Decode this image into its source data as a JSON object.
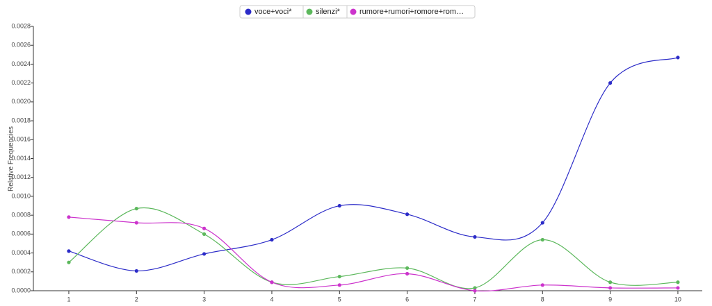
{
  "chart_data": {
    "type": "line",
    "y_label": "Relative Frequencies",
    "categories": [
      "1",
      "2",
      "3",
      "4",
      "5",
      "6",
      "7",
      "8",
      "9",
      "10"
    ],
    "series": [
      {
        "name": "voce+voci*",
        "color": "#2b2bc8",
        "values": [
          0.00042,
          0.00021,
          0.00039,
          0.00054,
          0.0009,
          0.00081,
          0.00057,
          0.00072,
          0.0022,
          0.00247
        ]
      },
      {
        "name": "silenzi*",
        "color": "#5cb85c",
        "values": [
          0.0003,
          0.00087,
          0.0006,
          9e-05,
          0.00015,
          0.00024,
          3e-05,
          0.00054,
          9e-05,
          9e-05
        ]
      },
      {
        "name": "rumore+rumori+romore+rom…",
        "color": "#cc33cc",
        "values": [
          0.00078,
          0.00072,
          0.00066,
          9e-05,
          6e-05,
          0.00018,
          0.0,
          6e-05,
          3e-05,
          3e-05
        ]
      }
    ],
    "ylim": [
      0,
      0.0028
    ],
    "yticks": [
      {
        "value": 0,
        "label": "0.0000"
      },
      {
        "value": 0.0002,
        "label": "0.0002"
      },
      {
        "value": 0.0004,
        "label": "0.0004"
      },
      {
        "value": 0.0006,
        "label": "0.0006"
      },
      {
        "value": 0.0008,
        "label": "0.0008"
      },
      {
        "value": 0.001,
        "label": "0.0010"
      },
      {
        "value": 0.0012,
        "label": "0.0012"
      },
      {
        "value": 0.0014,
        "label": "0.0014"
      },
      {
        "value": 0.0016,
        "label": "0.0016"
      },
      {
        "value": 0.0018,
        "label": "0.0018"
      },
      {
        "value": 0.002,
        "label": "0.0020"
      },
      {
        "value": 0.0022,
        "label": "0.0022"
      },
      {
        "value": 0.0024,
        "label": "0.0024"
      },
      {
        "value": 0.0026,
        "label": "0.0026"
      },
      {
        "value": 0.0028,
        "label": "0.0028"
      }
    ],
    "grid": false,
    "legend": "top"
  }
}
